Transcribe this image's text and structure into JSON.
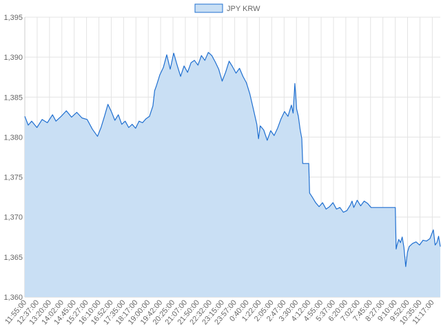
{
  "chart_data": {
    "type": "area",
    "series": [
      {
        "name": "JPY KRW",
        "line_color": "#1f6fd0",
        "fill_color": "#c9dff4",
        "points": [
          [
            0,
            1382.6
          ],
          [
            2,
            1381.5
          ],
          [
            4,
            1382.0
          ],
          [
            7,
            1381.2
          ],
          [
            10,
            1382.2
          ],
          [
            13,
            1381.8
          ],
          [
            16,
            1382.8
          ],
          [
            18,
            1382.0
          ],
          [
            21,
            1382.6
          ],
          [
            24,
            1383.3
          ],
          [
            27,
            1382.5
          ],
          [
            30,
            1383.1
          ],
          [
            33,
            1382.4
          ],
          [
            36,
            1382.2
          ],
          [
            39,
            1381.0
          ],
          [
            42,
            1380.1
          ],
          [
            44,
            1381.2
          ],
          [
            46,
            1382.6
          ],
          [
            48,
            1384.1
          ],
          [
            50,
            1383.2
          ],
          [
            52,
            1382.1
          ],
          [
            54,
            1382.8
          ],
          [
            56,
            1381.6
          ],
          [
            58,
            1382.0
          ],
          [
            60,
            1381.2
          ],
          [
            62,
            1381.6
          ],
          [
            64,
            1381.1
          ],
          [
            66,
            1382.0
          ],
          [
            68,
            1381.8
          ],
          [
            70,
            1382.3
          ],
          [
            72,
            1382.6
          ],
          [
            74,
            1383.9
          ],
          [
            75,
            1385.8
          ],
          [
            76,
            1386.4
          ],
          [
            78,
            1387.8
          ],
          [
            80,
            1388.7
          ],
          [
            82,
            1390.3
          ],
          [
            84,
            1388.5
          ],
          [
            86,
            1390.5
          ],
          [
            88,
            1389.0
          ],
          [
            90,
            1387.6
          ],
          [
            92,
            1388.9
          ],
          [
            94,
            1388.1
          ],
          [
            96,
            1389.3
          ],
          [
            98,
            1389.6
          ],
          [
            100,
            1389.0
          ],
          [
            102,
            1390.2
          ],
          [
            104,
            1389.6
          ],
          [
            106,
            1390.6
          ],
          [
            108,
            1390.2
          ],
          [
            110,
            1389.4
          ],
          [
            112,
            1388.5
          ],
          [
            114,
            1387.0
          ],
          [
            116,
            1388.1
          ],
          [
            118,
            1389.5
          ],
          [
            120,
            1388.8
          ],
          [
            122,
            1388.0
          ],
          [
            124,
            1388.6
          ],
          [
            126,
            1387.6
          ],
          [
            128,
            1386.8
          ],
          [
            130,
            1385.4
          ],
          [
            132,
            1383.5
          ],
          [
            134,
            1381.6
          ],
          [
            135,
            1379.8
          ],
          [
            136,
            1381.4
          ],
          [
            138,
            1380.9
          ],
          [
            140,
            1379.6
          ],
          [
            142,
            1380.8
          ],
          [
            144,
            1380.2
          ],
          [
            146,
            1381.1
          ],
          [
            148,
            1382.3
          ],
          [
            150,
            1383.2
          ],
          [
            152,
            1382.6
          ],
          [
            154,
            1384.0
          ],
          [
            155,
            1383.0
          ],
          [
            156,
            1386.7
          ],
          [
            157,
            1383.5
          ],
          [
            158,
            1382.6
          ],
          [
            159,
            1381.0
          ],
          [
            160,
            1379.8
          ],
          [
            160.5,
            1376.7
          ],
          [
            164,
            1376.7
          ],
          [
            164.5,
            1373.0
          ],
          [
            166,
            1372.5
          ],
          [
            168,
            1371.8
          ],
          [
            170,
            1371.3
          ],
          [
            172,
            1371.8
          ],
          [
            174,
            1371.0
          ],
          [
            176,
            1371.3
          ],
          [
            178,
            1371.8
          ],
          [
            180,
            1371.0
          ],
          [
            182,
            1371.2
          ],
          [
            184,
            1370.6
          ],
          [
            186,
            1370.8
          ],
          [
            188,
            1371.5
          ],
          [
            189,
            1372.0
          ],
          [
            190,
            1371.2
          ],
          [
            192,
            1372.1
          ],
          [
            194,
            1371.4
          ],
          [
            196,
            1372.0
          ],
          [
            198,
            1371.7
          ],
          [
            200,
            1371.2
          ],
          [
            204,
            1371.2
          ],
          [
            208,
            1371.2
          ],
          [
            212,
            1371.2
          ],
          [
            214,
            1371.2
          ],
          [
            214.5,
            1366.0
          ],
          [
            215,
            1366.5
          ],
          [
            216,
            1367.2
          ],
          [
            217,
            1366.8
          ],
          [
            218,
            1367.5
          ],
          [
            219,
            1366.2
          ],
          [
            220,
            1363.8
          ],
          [
            221,
            1365.6
          ],
          [
            222,
            1366.3
          ],
          [
            224,
            1366.7
          ],
          [
            226,
            1366.9
          ],
          [
            228,
            1366.5
          ],
          [
            230,
            1367.1
          ],
          [
            232,
            1367.0
          ],
          [
            234,
            1367.3
          ],
          [
            236,
            1368.4
          ],
          [
            237,
            1366.5
          ],
          [
            238,
            1366.8
          ],
          [
            239,
            1367.6
          ],
          [
            240,
            1366.3
          ]
        ]
      }
    ],
    "x_labels": [
      "11:55:00",
      "12:37:00",
      "13:20:00",
      "14:02:00",
      "14:45:00",
      "15:27:00",
      "16:10:00",
      "16:52:00",
      "17:35:00",
      "18:17:00",
      "19:00:00",
      "19:42:00",
      "20:25:00",
      "21:07:00",
      "21:50:00",
      "22:32:00",
      "23:15:00",
      "23:57:00",
      "0:40:00",
      "1:22:00",
      "2:05:00",
      "2:47:00",
      "3:30:00",
      "4:12:00",
      "4:55:00",
      "5:37:00",
      "6:20:00",
      "7:02:00",
      "7:45:00",
      "8:27:00",
      "9:10:00",
      "9:52:00",
      "10:35:00",
      "11:17:00"
    ],
    "y_ticks": [
      "1,360",
      "1,365",
      "1,370",
      "1,375",
      "1,380",
      "1,385",
      "1,390",
      "1,395"
    ],
    "ylim": [
      1360,
      1395
    ],
    "grid": true,
    "legend": "top-center",
    "title": "",
    "xlabel": "",
    "ylabel": ""
  }
}
